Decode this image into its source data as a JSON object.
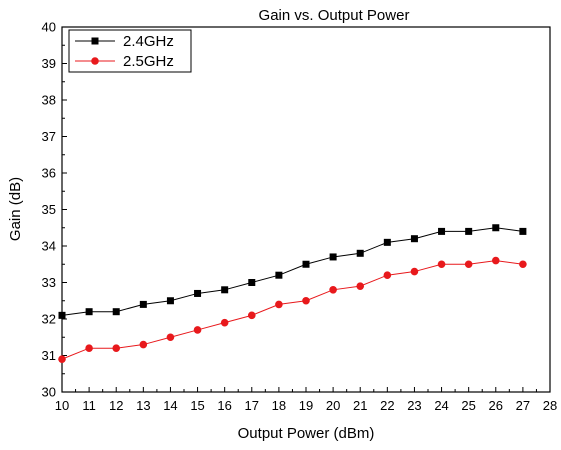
{
  "chart_data": {
    "type": "line",
    "title": "Gain vs. Output Power",
    "xlabel": "Output Power (dBm)",
    "ylabel": "Gain (dB)",
    "xlim": [
      10,
      28
    ],
    "ylim": [
      30,
      40
    ],
    "xticks": [
      "10",
      "11",
      "12",
      "13",
      "14",
      "15",
      "16",
      "17",
      "18",
      "19",
      "20",
      "21",
      "22",
      "23",
      "24",
      "25",
      "26",
      "27",
      "28"
    ],
    "yticks": [
      "30",
      "31",
      "32",
      "33",
      "34",
      "35",
      "36",
      "37",
      "38",
      "39",
      "40"
    ],
    "grid": false,
    "legend_position": "top-left",
    "x": [
      10,
      11,
      12,
      13,
      14,
      15,
      16,
      17,
      18,
      19,
      20,
      21,
      22,
      23,
      24,
      25,
      26,
      27
    ],
    "series": [
      {
        "name": "2.4GHz",
        "color": "#000000",
        "marker": "square",
        "values": [
          32.1,
          32.2,
          32.2,
          32.4,
          32.5,
          32.7,
          32.8,
          33.0,
          33.2,
          33.5,
          33.7,
          33.8,
          34.1,
          34.2,
          34.4,
          34.4,
          34.5,
          34.4
        ]
      },
      {
        "name": "2.5GHz",
        "color": "#e8191c",
        "marker": "circle",
        "values": [
          30.9,
          31.2,
          31.2,
          31.3,
          31.5,
          31.7,
          31.9,
          32.1,
          32.4,
          32.5,
          32.8,
          32.9,
          33.2,
          33.3,
          33.5,
          33.5,
          33.6,
          33.5
        ]
      }
    ]
  }
}
